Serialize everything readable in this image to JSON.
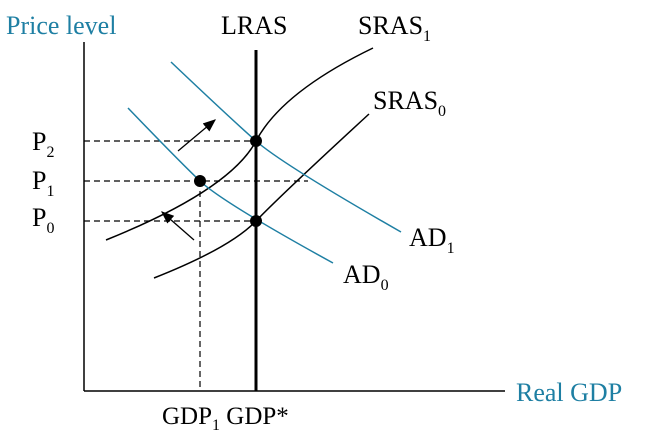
{
  "labels": {
    "y_axis": "Price level",
    "x_axis": "Real GDP",
    "lras": "LRAS",
    "sras1_base": "SRAS",
    "sras1_sub": "1",
    "sras0_base": "SRAS",
    "sras0_sub": "0",
    "ad1_base": "AD",
    "ad1_sub": "1",
    "ad0_base": "AD",
    "ad0_sub": "0",
    "p2_base": "P",
    "p2_sub": "2",
    "p1_base": "P",
    "p1_sub": "1",
    "p0_base": "P",
    "p0_sub": "0",
    "gdp1_base": "GDP",
    "gdp1_sub": "1",
    "gdp_star": " GDP*"
  },
  "colors": {
    "axis_labels": "#1e7fa3",
    "ad_curves": "#1e7fa3",
    "sras_curves": "#000000",
    "lras": "#000000"
  },
  "icons": {
    "shift_arrow_ad": "arrow-up-right",
    "shift_arrow_sras": "arrow-up-left"
  }
}
